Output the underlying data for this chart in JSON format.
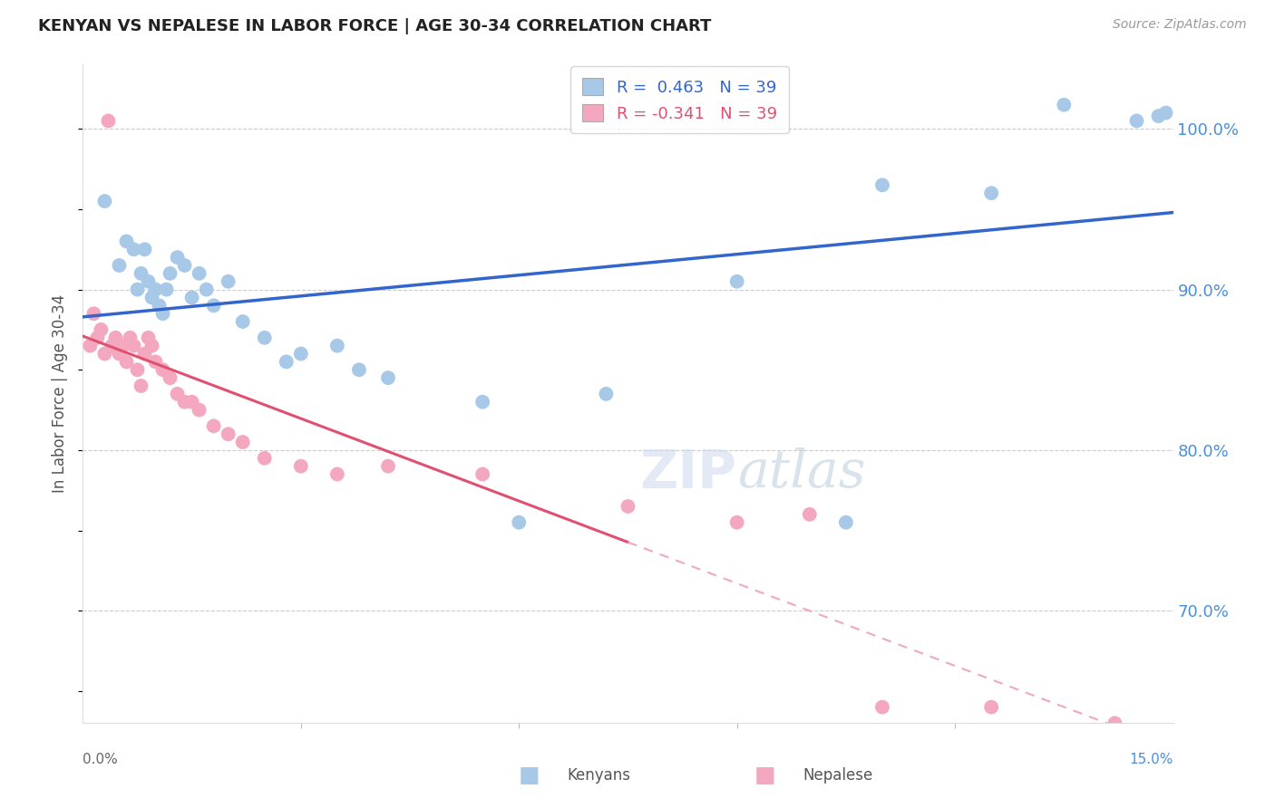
{
  "title": "KENYAN VS NEPALESE IN LABOR FORCE | AGE 30-34 CORRELATION CHART",
  "source": "Source: ZipAtlas.com",
  "ylabel": "In Labor Force | Age 30-34",
  "y_ticks": [
    70.0,
    80.0,
    90.0,
    100.0
  ],
  "x_range": [
    0.0,
    15.0
  ],
  "y_range": [
    63.0,
    104.0
  ],
  "r_kenyan": 0.463,
  "r_nepalese": -0.341,
  "n_kenyan": 39,
  "n_nepalese": 39,
  "kenyan_color": "#a8c8e8",
  "nepalese_color": "#f4a8c0",
  "line_kenyan_color": "#3366cc",
  "line_nepalese_solid_color": "#e05070",
  "line_nepalese_dash_color": "#f0a8bc",
  "nepalese_line_split_x": 7.5,
  "kenyan_x": [
    0.3,
    0.5,
    0.6,
    0.7,
    0.75,
    0.8,
    0.85,
    0.9,
    0.95,
    1.0,
    1.05,
    1.1,
    1.15,
    1.2,
    1.3,
    1.4,
    1.5,
    1.6,
    1.7,
    1.8,
    2.0,
    2.2,
    2.5,
    2.8,
    3.0,
    3.5,
    3.8,
    4.2,
    5.5,
    6.0,
    7.2,
    9.0,
    10.5,
    11.0,
    12.5,
    13.5,
    14.5,
    14.8,
    14.9
  ],
  "kenyan_y": [
    95.5,
    91.5,
    93.0,
    92.5,
    90.0,
    91.0,
    92.5,
    90.5,
    89.5,
    90.0,
    89.0,
    88.5,
    90.0,
    91.0,
    92.0,
    91.5,
    89.5,
    91.0,
    90.0,
    89.0,
    90.5,
    88.0,
    87.0,
    85.5,
    86.0,
    86.5,
    85.0,
    84.5,
    83.0,
    75.5,
    83.5,
    90.5,
    75.5,
    96.5,
    96.0,
    101.5,
    100.5,
    100.8,
    101.0
  ],
  "nepalese_x": [
    0.1,
    0.15,
    0.2,
    0.25,
    0.3,
    0.35,
    0.4,
    0.45,
    0.5,
    0.55,
    0.6,
    0.65,
    0.7,
    0.75,
    0.8,
    0.85,
    0.9,
    0.95,
    1.0,
    1.1,
    1.2,
    1.3,
    1.4,
    1.5,
    1.6,
    1.8,
    2.0,
    2.2,
    2.5,
    3.0,
    3.5,
    4.2,
    5.5,
    7.5,
    9.0,
    10.0,
    11.0,
    12.5,
    14.2
  ],
  "nepalese_y": [
    86.5,
    88.5,
    87.0,
    87.5,
    86.0,
    100.5,
    86.5,
    87.0,
    86.0,
    86.5,
    85.5,
    87.0,
    86.5,
    85.0,
    84.0,
    86.0,
    87.0,
    86.5,
    85.5,
    85.0,
    84.5,
    83.5,
    83.0,
    83.0,
    82.5,
    81.5,
    81.0,
    80.5,
    79.5,
    79.0,
    78.5,
    79.0,
    78.5,
    76.5,
    75.5,
    76.0,
    64.0,
    64.0,
    63.0
  ]
}
